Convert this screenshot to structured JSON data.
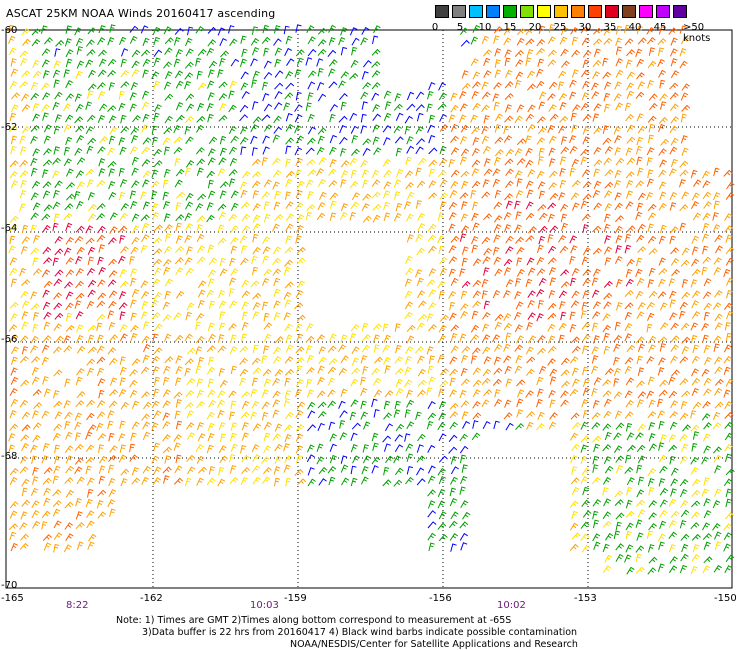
{
  "title": "ASCAT 25KM NOAA Winds 20160417 ascending",
  "legend": {
    "labels": [
      "0",
      "5",
      "10",
      "15",
      "20",
      "25",
      "30",
      "35",
      "40",
      "45",
      ">50 knots"
    ],
    "colors": [
      "#404040",
      "#808080",
      "#00c0ff",
      "#0080ff",
      "#00b000",
      "#80e000",
      "#ffff00",
      "#ffc000",
      "#ff8000",
      "#ff4000",
      "#e00020",
      "#804020",
      "#ff00ff",
      "#c000ff",
      "#6000a0"
    ]
  },
  "map": {
    "lat_labels": [
      "-60",
      "-62",
      "-64",
      "-66",
      "-68",
      "-70"
    ],
    "lon_labels": [
      "-165",
      "-162",
      "-159",
      "-156",
      "-153",
      "-150"
    ],
    "times": [
      "8:22",
      "10:03",
      "10:02"
    ]
  },
  "notes": {
    "line1": "Note: 1) Times are GMT 2)Times along bottom correspond to measurement at -65S",
    "line2": "3)Data buffer is 22 hrs from 20160417 4) Black wind barbs indicate possible contamination",
    "line3": "NOAA/NESDIS/Center for Satellite Applications and Research"
  }
}
